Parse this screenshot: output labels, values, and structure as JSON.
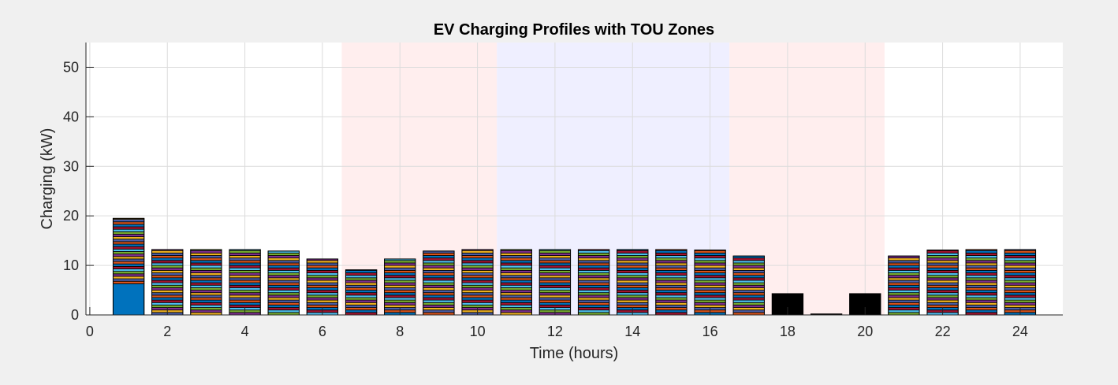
{
  "chart_data": {
    "type": "bar",
    "title": "EV Charging Profiles with TOU Zones",
    "xlabel": "Time (hours)",
    "ylabel": "Charging (kW)",
    "xlim": [
      -0.1,
      25.1
    ],
    "ylim": [
      0,
      55
    ],
    "xticks": [
      "0",
      "2",
      "4",
      "6",
      "8",
      "10",
      "12",
      "14",
      "16",
      "18",
      "20",
      "22",
      "24"
    ],
    "yticks": [
      "0",
      "10",
      "20",
      "30",
      "40",
      "50"
    ],
    "grid": true,
    "stacked": true,
    "zones": [
      {
        "start": 6.5,
        "end": 10.5,
        "color": "#ffeeee"
      },
      {
        "start": 10.5,
        "end": 16.5,
        "color": "#efefff"
      },
      {
        "start": 16.5,
        "end": 20.5,
        "color": "#ffeeee"
      }
    ],
    "x": [
      1,
      2,
      3,
      4,
      5,
      6,
      7,
      8,
      9,
      10,
      11,
      12,
      13,
      14,
      15,
      16,
      17,
      18,
      19,
      20,
      21,
      22,
      23,
      24
    ],
    "totals": [
      19.5,
      13.2,
      13.2,
      13.2,
      12.9,
      11.3,
      9.1,
      11.3,
      12.9,
      13.2,
      13.2,
      13.2,
      13.2,
      13.2,
      13.2,
      13.1,
      11.9,
      4.3,
      0.2,
      4.3,
      11.9,
      13.1,
      13.2,
      13.2
    ],
    "highlight_segment": {
      "hour": 1,
      "value": 6.3,
      "color": "#0072bd"
    },
    "segment_colors": [
      "#d95319",
      "#4a5fa8",
      "#edb120",
      "#7e2f8e",
      "#77ac30",
      "#4dbeee",
      "#a2142f",
      "#0072bd"
    ],
    "black_bars": [
      18,
      19,
      20
    ],
    "segment_height": 0.5
  }
}
